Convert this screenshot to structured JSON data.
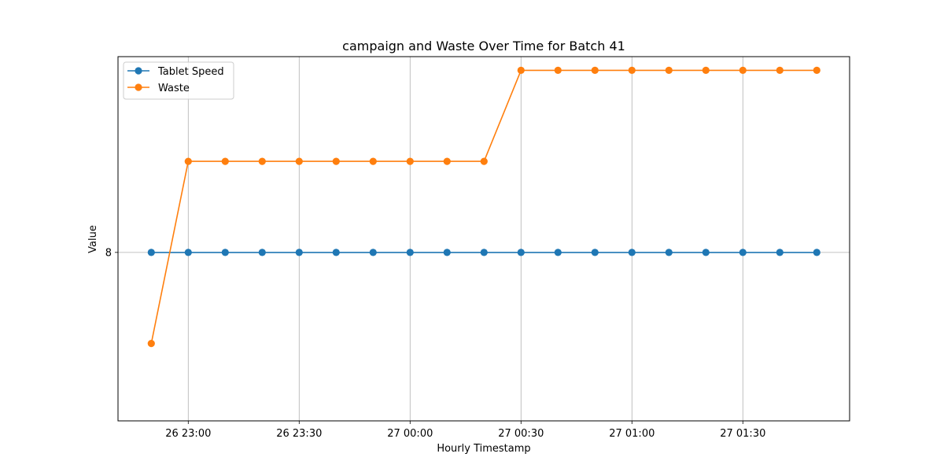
{
  "chart_data": {
    "type": "line",
    "title": "campaign and Waste Over Time for Batch 41",
    "xlabel": "Hourly Timestamp",
    "ylabel": "Value",
    "x": [
      "26 22:50",
      "26 23:00",
      "26 23:10",
      "26 23:20",
      "26 23:30",
      "26 23:40",
      "26 23:50",
      "27 00:00",
      "27 00:10",
      "27 00:20",
      "27 00:30",
      "27 00:40",
      "27 00:50",
      "27 01:00",
      "27 01:10",
      "27 01:20",
      "27 01:30",
      "27 01:40",
      "27 01:50"
    ],
    "xticks": [
      "26 23:00",
      "26 23:30",
      "27 00:00",
      "27 00:30",
      "27 01:00",
      "27 01:30"
    ],
    "yticks": [
      8
    ],
    "ylim": [
      6.15,
      10.15
    ],
    "grid": true,
    "legend_position": "upper-left",
    "series": [
      {
        "name": "Tablet Speed",
        "color": "#1f77b4",
        "values": [
          8,
          8,
          8,
          8,
          8,
          8,
          8,
          8,
          8,
          8,
          8,
          8,
          8,
          8,
          8,
          8,
          8,
          8,
          8
        ]
      },
      {
        "name": "Waste",
        "color": "#ff7f0e",
        "values": [
          7,
          9,
          9,
          9,
          9,
          9,
          9,
          9,
          9,
          9,
          10,
          10,
          10,
          10,
          10,
          10,
          10,
          10,
          10
        ]
      }
    ]
  }
}
